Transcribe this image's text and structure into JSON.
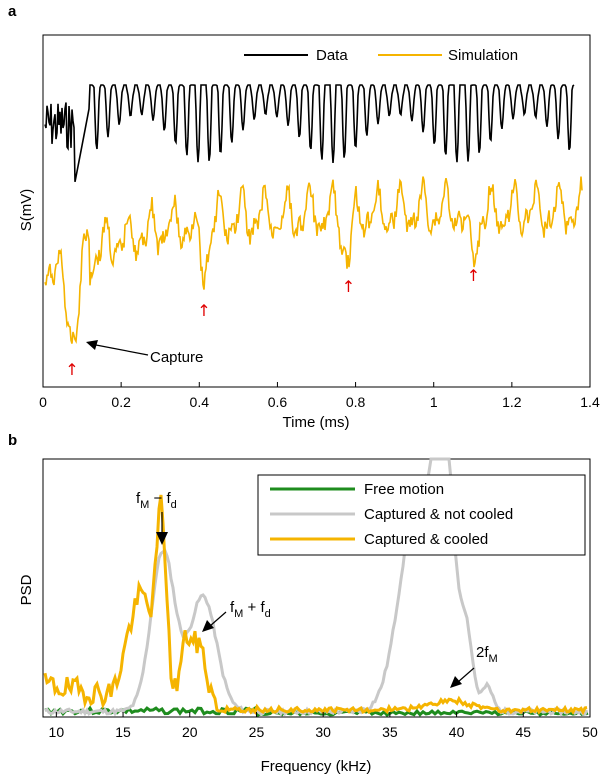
{
  "chart_data": [
    {
      "panel": "a",
      "type": "line",
      "xlabel": "Time (ms)",
      "ylabel": "S(mV)",
      "xlim": [
        0,
        1.4
      ],
      "xticks": [
        "0",
        "0.2",
        "0.4",
        "0.6",
        "0.8",
        "1",
        "1.2",
        "1.4"
      ],
      "legend_position": "top-right",
      "series": [
        {
          "name": "Data",
          "color": "#000000"
        },
        {
          "name": "Simulation",
          "color": "#F5B400"
        }
      ],
      "annotations": [
        {
          "text": "Capture",
          "x": 0.08
        },
        {
          "text": "↑",
          "x": 0.08
        },
        {
          "text": "↑",
          "x": 0.41
        },
        {
          "text": "↑",
          "x": 0.78
        },
        {
          "text": "↑",
          "x": 1.1
        }
      ],
      "marker_color": "#E00000"
    },
    {
      "panel": "b",
      "type": "line",
      "xlabel": "Frequency (kHz)",
      "ylabel": "PSD",
      "xlim": [
        9,
        50
      ],
      "xticks": [
        "10",
        "15",
        "20",
        "25",
        "30",
        "35",
        "40",
        "45",
        "50"
      ],
      "legend_position": "top-right",
      "series": [
        {
          "name": "Free motion",
          "color": "#1E8C1E"
        },
        {
          "name": "Captured & not cooled",
          "color": "#C8C8C8"
        },
        {
          "name": "Captured & cooled",
          "color": "#F5B400"
        }
      ],
      "annotations": [
        {
          "text": "fM − fd",
          "x": 18,
          "base": "f",
          "sub1": "M",
          "mid": " − f",
          "sub2": "d"
        },
        {
          "text": "fM + fd",
          "x": 21,
          "base": "f",
          "sub1": "M",
          "mid": " + f",
          "sub2": "d"
        },
        {
          "text": "2fM",
          "x": 39.5,
          "base": "2f",
          "sub1": "M"
        }
      ]
    }
  ]
}
